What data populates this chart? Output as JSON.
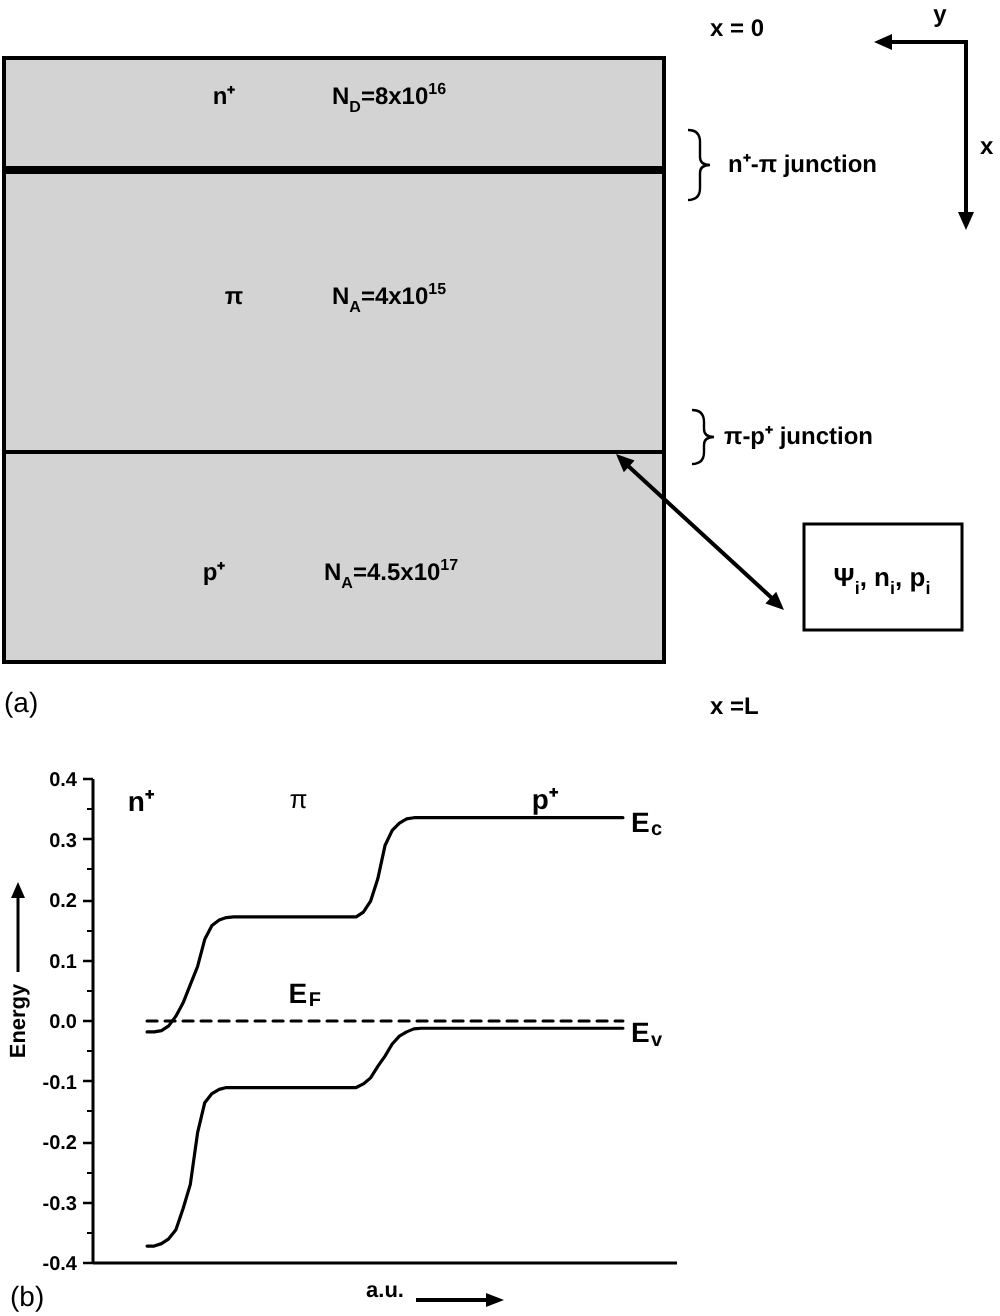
{
  "chart_data": [
    {
      "type": "other",
      "annotations": [
        "n⁺",
        "N$_{D}$=8x10$^{16}$",
        "π",
        "N$_{A}$=4x10$^{15}$",
        "p⁺",
        "N$_{A}$=4.5x10$^{17}$",
        "n⁺-π junction",
        "π-p⁺ junction",
        "Ψ$_{i}$, n$_{i}$, p$_{i}$",
        "x = 0",
        "x =L",
        "y",
        "x",
        "(a)"
      ]
    },
    {
      "type": "line",
      "categories": [
        null,
        null,
        null,
        null,
        null,
        null,
        null,
        null,
        null,
        null,
        null,
        null,
        null,
        null,
        null,
        null,
        null,
        null,
        null,
        null,
        null,
        null,
        null,
        null,
        null,
        null,
        null,
        null,
        null,
        null,
        null,
        null,
        null,
        null,
        null,
        null,
        null,
        null,
        null,
        null,
        null,
        null,
        null,
        null,
        null,
        null,
        null,
        null,
        null,
        null,
        null,
        null,
        null,
        null,
        null,
        null,
        null,
        null,
        null,
        null,
        null,
        null,
        null,
        null,
        null,
        null,
        null,
        null,
        null,
        null,
        null,
        null,
        null,
        null,
        null,
        null,
        null,
        null,
        null,
        null,
        null
      ],
      "series": [
        {
          "name": "E$_{c}$",
          "color": "#000000",
          "values": [
            null,
            null,
            null,
            null,
            null,
            null,
            null,
            -0.018,
            -0.018,
            -0.016,
            -0.008,
            0.008,
            0.03,
            0.06,
            0.09,
            0.135,
            0.158,
            0.167,
            0.171,
            0.172,
            0.172,
            0.172,
            0.172,
            0.172,
            0.172,
            0.172,
            0.172,
            0.172,
            0.172,
            0.172,
            0.172,
            0.172,
            0.172,
            0.172,
            0.172,
            0.172,
            0.172,
            0.18,
            0.198,
            0.235,
            0.29,
            0.315,
            0.327,
            0.334,
            0.336,
            0.336,
            0.336,
            0.336,
            0.336,
            0.336,
            0.336,
            0.336,
            0.336,
            0.336,
            0.336,
            0.336,
            0.336,
            0.336,
            0.336,
            0.336,
            0.336,
            0.336,
            0.336,
            0.336,
            0.336,
            0.336,
            0.336,
            0.336,
            0.336,
            0.336,
            0.336,
            0.336,
            0.336,
            0.336,
            null,
            null,
            null,
            null,
            null,
            null,
            null
          ]
        },
        {
          "name": "E$_{v}$",
          "color": "#000000",
          "values": [
            null,
            null,
            null,
            null,
            null,
            null,
            null,
            -0.372,
            -0.372,
            -0.368,
            -0.36,
            -0.345,
            -0.31,
            -0.27,
            -0.185,
            -0.135,
            -0.12,
            -0.113,
            -0.11,
            -0.11,
            -0.11,
            -0.11,
            -0.11,
            -0.11,
            -0.11,
            -0.11,
            -0.11,
            -0.11,
            -0.11,
            -0.11,
            -0.11,
            -0.11,
            -0.11,
            -0.11,
            -0.11,
            -0.11,
            -0.11,
            -0.104,
            -0.094,
            -0.075,
            -0.058,
            -0.038,
            -0.025,
            -0.018,
            -0.013,
            -0.012,
            -0.012,
            -0.012,
            -0.012,
            -0.012,
            -0.012,
            -0.012,
            -0.012,
            -0.012,
            -0.012,
            -0.012,
            -0.012,
            -0.012,
            -0.012,
            -0.012,
            -0.012,
            -0.012,
            -0.012,
            -0.012,
            -0.012,
            -0.012,
            -0.012,
            -0.012,
            -0.012,
            -0.012,
            -0.012,
            -0.012,
            -0.012,
            -0.012,
            null,
            null,
            null,
            null,
            null,
            null,
            null
          ]
        },
        {
          "name": "E$_{F}$",
          "color": "#000000",
          "line_style": "dashed",
          "values": [
            null,
            null,
            null,
            null,
            null,
            null,
            null,
            0,
            0,
            0,
            0,
            0,
            0,
            0,
            0,
            0,
            0,
            0,
            0,
            0,
            0,
            0,
            0,
            0,
            0,
            0,
            0,
            0,
            0,
            0,
            0,
            0,
            0,
            0,
            0,
            0,
            0,
            0,
            0,
            0,
            0,
            0,
            0,
            0,
            0,
            0,
            0,
            0,
            0,
            0,
            0,
            0,
            0,
            0,
            0,
            0,
            0,
            0,
            0,
            0,
            0,
            0,
            0,
            0,
            0,
            0,
            0,
            0,
            0,
            0,
            0,
            0,
            0,
            0,
            null,
            null,
            null,
            null,
            null,
            null,
            null
          ]
        }
      ],
      "line_style": "solid",
      "ylim": [
        -0.4,
        0.4
      ],
      "yticks": [
        -0.4,
        {
          "value": -0.35,
          "label": null
        },
        -0.3,
        {
          "value": -0.25,
          "label": null
        },
        -0.2,
        {
          "value": -0.15,
          "label": null
        },
        -0.1,
        {
          "value": -0.05,
          "label": null
        },
        {
          "value": 0,
          "label": "0.0"
        },
        {
          "value": 0.05,
          "label": null
        },
        0.1,
        {
          "value": 0.15,
          "label": null
        },
        0.2,
        {
          "value": 0.25,
          "label": null
        },
        0.3,
        {
          "value": 0.35,
          "label": null
        },
        0.4
      ],
      "ylabel": "Energy",
      "xlabel": "a.u.",
      "tick_labels": "y",
      "annotations": [
        "n⁺",
        "π",
        "p⁺",
        "(b)"
      ]
    }
  ]
}
